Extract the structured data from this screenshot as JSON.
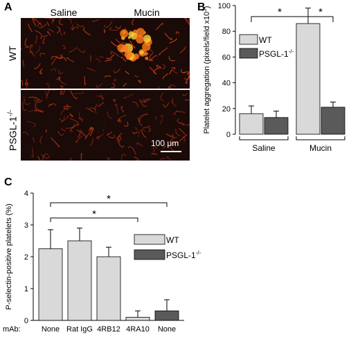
{
  "panels": {
    "a": {
      "letter": "A",
      "col_labels": [
        "Saline",
        "Mucin"
      ],
      "row_labels": [
        "WT",
        "PSGL-1"
      ],
      "row_label_sup": "-/-",
      "scale_label": "100 μm"
    },
    "b": {
      "letter": "B"
    },
    "c": {
      "letter": "C"
    }
  },
  "colors": {
    "wt": "#d9d9d9",
    "psgl": "#5a5a5a",
    "micro_bg": "#1a0a08",
    "micro_signal": "#e0441a"
  },
  "chart_data": [
    {
      "id": "B",
      "type": "bar",
      "ylabel": "Platelet aggregation (pixels/field x10",
      "ylabel_sup": "3",
      "ylabel_tail": ")",
      "ylim": [
        0,
        100
      ],
      "yticks": [
        0,
        20,
        40,
        60,
        80,
        100
      ],
      "groups": [
        "Saline",
        "Mucin"
      ],
      "series": [
        {
          "name": "WT",
          "values": [
            16,
            86
          ],
          "errors": [
            6,
            12
          ]
        },
        {
          "name": "PSGL-1",
          "name_sup": "-/-",
          "values": [
            13,
            21
          ],
          "errors": [
            5,
            4
          ]
        }
      ],
      "significance": [
        "*",
        "*"
      ],
      "legend": "top-left"
    },
    {
      "id": "C",
      "type": "bar",
      "ylabel": "P-selectin-positive platelets (%)",
      "ylim": [
        0,
        4
      ],
      "yticks": [
        0,
        1,
        2,
        3,
        4
      ],
      "xlabel_prefix": "mAb:",
      "categories": [
        "None",
        "Rat IgG",
        "4RB12",
        "4RA10",
        "None"
      ],
      "genotype": [
        "WT",
        "WT",
        "WT",
        "WT",
        "PSGL-1"
      ],
      "values": [
        2.25,
        2.5,
        2.0,
        0.1,
        0.3
      ],
      "errors": [
        0.6,
        0.4,
        0.3,
        0.2,
        0.35
      ],
      "significance": [
        "*",
        "*"
      ],
      "legend_items": [
        {
          "name": "WT",
          "sup": ""
        },
        {
          "name": "PSGL-1",
          "sup": "-/-"
        }
      ],
      "legend": "center-right"
    }
  ]
}
